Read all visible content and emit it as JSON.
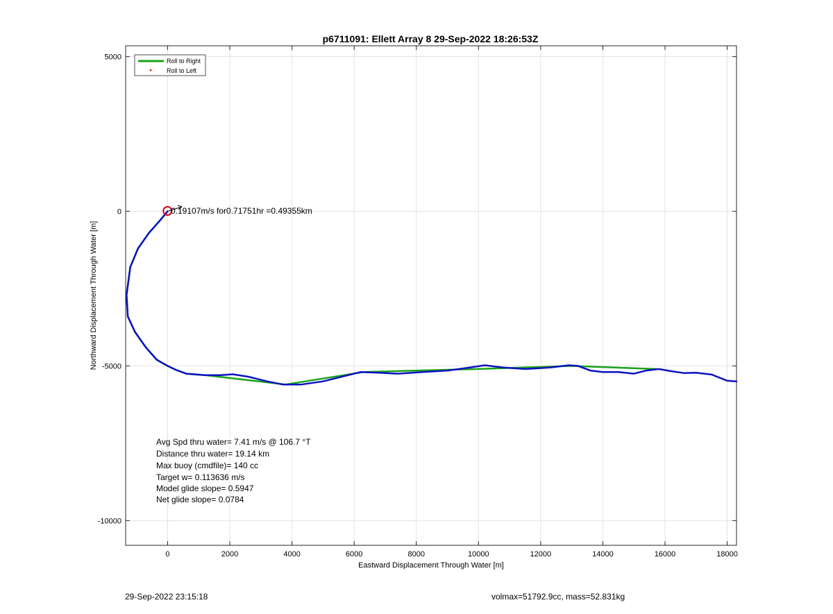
{
  "chart_data": {
    "type": "line",
    "title": "p6711091: Ellett Array 8 29-Sep-2022 18:26:53Z",
    "xlabel": "Eastward Displacement Through Water [m]",
    "ylabel": "Northward Displacement Through Water [m]",
    "xlim": [
      -1350,
      18300
    ],
    "ylim": [
      -10800,
      5350
    ],
    "xticks": [
      0,
      2000,
      4000,
      6000,
      8000,
      10000,
      12000,
      14000,
      16000,
      18000
    ],
    "yticks": [
      5000,
      0,
      -5000,
      -10000
    ],
    "grid": true,
    "legend_position": "top-left",
    "series": [
      {
        "name": "Roll to Right",
        "color": "#1aa21a",
        "x": [
          0,
          -250,
          -600,
          -950,
          -1200,
          -1320,
          -1280,
          -1050,
          -700,
          -350,
          0,
          250,
          600,
          1200,
          3800,
          6300,
          8000,
          10000,
          13000,
          15700
        ],
        "y": [
          0,
          -300,
          -700,
          -1200,
          -1800,
          -2700,
          -3400,
          -3900,
          -4400,
          -4800,
          -5000,
          -5120,
          -5250,
          -5300,
          -5600,
          -5200,
          -5150,
          -5100,
          -5000,
          -5100
        ]
      },
      {
        "name": "Roll to Left",
        "color": "#e00000",
        "x": [],
        "y": []
      },
      {
        "color": "#0a12c0",
        "x": [
          0,
          -250,
          -600,
          -950,
          -1200,
          -1320,
          -1280,
          -1050,
          -700,
          -350,
          0,
          250,
          600,
          1200,
          1700,
          2100,
          2600,
          3200,
          3700,
          4300,
          5000,
          5600,
          6200,
          6800,
          7400,
          8200,
          9000,
          9600,
          10200,
          10800,
          11500,
          12300,
          12900,
          13200,
          13600,
          14000,
          14500,
          15000,
          15400,
          15800,
          16200,
          16600,
          17000,
          17500,
          18000,
          18300
        ],
        "y": [
          0,
          -300,
          -700,
          -1200,
          -1800,
          -2700,
          -3400,
          -3900,
          -4400,
          -4800,
          -5000,
          -5120,
          -5250,
          -5300,
          -5300,
          -5270,
          -5350,
          -5500,
          -5600,
          -5600,
          -5500,
          -5350,
          -5200,
          -5220,
          -5250,
          -5200,
          -5150,
          -5070,
          -4980,
          -5050,
          -5100,
          -5050,
          -4980,
          -5000,
          -5150,
          -5200,
          -5200,
          -5250,
          -5150,
          -5100,
          -5170,
          -5230,
          -5220,
          -5280,
          -5480,
          -5500
        ]
      }
    ],
    "annotations": {
      "current_speed": "0.19107m/s for0.71751hr =0.49355km",
      "stats": [
        "Avg Spd thru water=  7.41 m/s @ 106.7 °T",
        "Distance thru water= 19.14 km",
        "Max buoy (cmdfile)= 140 cc",
        "Target w= 0.113636 m/s",
        "Model glide slope= 0.5947",
        "Net glide slope= 0.0784"
      ]
    }
  },
  "footer": {
    "left": "29-Sep-2022 23:15:18",
    "right": "volmax=51792.9cc, mass=52.831kg"
  }
}
